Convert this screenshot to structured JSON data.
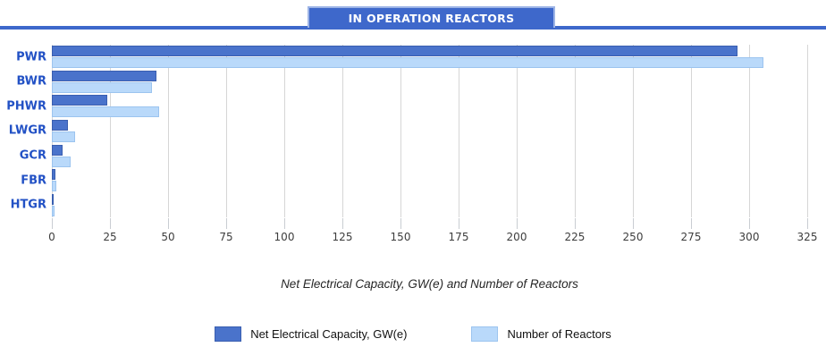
{
  "header": {
    "title": "IN OPERATION REACTORS"
  },
  "colors": {
    "accent": "#3e68cb",
    "grid": "#d6d6d6",
    "tick": "#c9cdd2",
    "tick_label": "#3d3d3d",
    "category_label": "#2251c5"
  },
  "chart_data": {
    "type": "bar",
    "orientation": "horizontal",
    "title": "IN OPERATION REACTORS",
    "xlabel": "Net Electrical Capacity, GW(e) and Number of Reactors",
    "categories": [
      "PWR",
      "BWR",
      "PHWR",
      "LWGR",
      "GCR",
      "FBR",
      "HTGR"
    ],
    "series": [
      {
        "name": "Net Electrical Capacity, GW(e)",
        "color": "#4a73cb",
        "border": "#3a5fb0",
        "values": [
          295,
          45,
          24,
          7,
          4.7,
          1.4,
          0.2
        ]
      },
      {
        "name": "Number of Reactors",
        "color": "#b9d9fa",
        "border": "#9cc4ef",
        "values": [
          306,
          43,
          46,
          10,
          8,
          2,
          1
        ]
      }
    ],
    "xlim": [
      0,
      325
    ],
    "xtick_step": 25,
    "xticks": [
      0,
      25,
      50,
      75,
      100,
      125,
      150,
      175,
      200,
      225,
      250,
      275,
      300,
      325
    ],
    "grid": true,
    "legend_position": "bottom"
  }
}
